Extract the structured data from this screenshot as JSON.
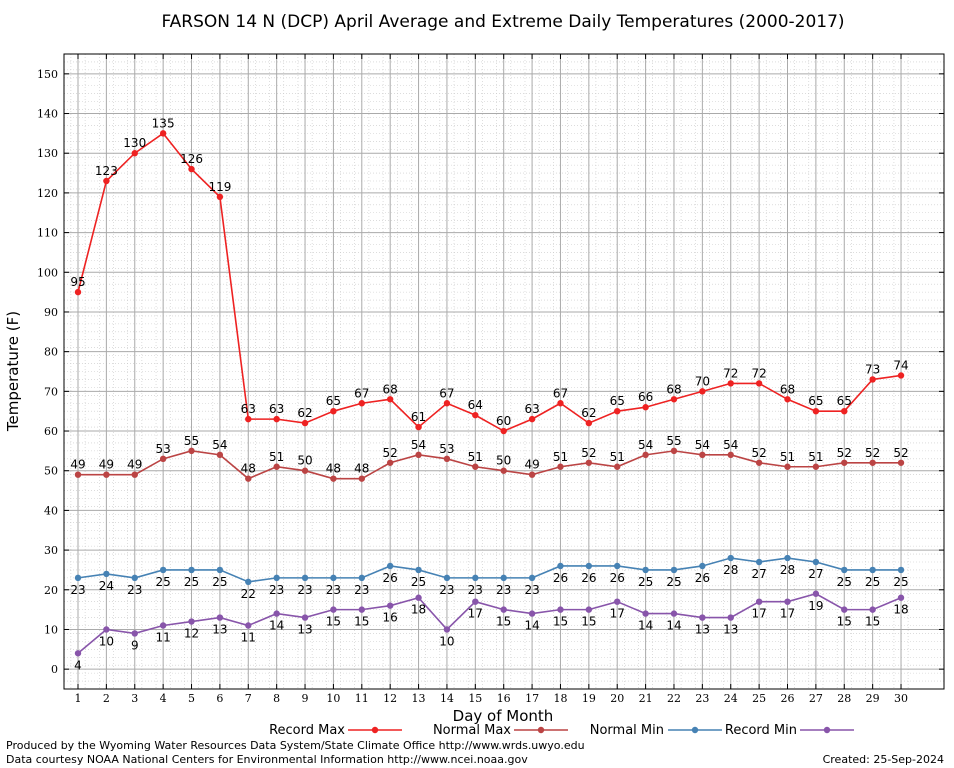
{
  "chart_data": {
    "type": "line",
    "title": "FARSON 14 N (DCP) April Average and Extreme Daily Temperatures (2000-2017)",
    "xlabel": "Day of Month",
    "ylabel": "Temperature (F)",
    "ylim": [
      -5,
      155
    ],
    "yticks": [
      0,
      10,
      20,
      30,
      40,
      50,
      60,
      70,
      80,
      90,
      100,
      110,
      120,
      130,
      140,
      150
    ],
    "x": [
      1,
      2,
      3,
      4,
      5,
      6,
      7,
      8,
      9,
      10,
      11,
      12,
      13,
      14,
      15,
      16,
      17,
      18,
      19,
      20,
      21,
      22,
      23,
      24,
      25,
      26,
      27,
      28,
      29,
      30
    ],
    "grid": true,
    "legend_position": "bottom",
    "series": [
      {
        "name": "Record Max",
        "color": "#ee2222",
        "label_position": "above",
        "values": [
          95,
          123,
          130,
          135,
          126,
          119,
          63,
          63,
          62,
          65,
          67,
          68,
          61,
          67,
          64,
          60,
          63,
          67,
          62,
          65,
          66,
          68,
          70,
          72,
          72,
          68,
          65,
          65,
          73,
          74
        ]
      },
      {
        "name": "Normal Max",
        "color": "#bb4444",
        "label_position": "above",
        "values": [
          49,
          49,
          49,
          53,
          55,
          54,
          48,
          51,
          50,
          48,
          48,
          52,
          54,
          53,
          51,
          50,
          49,
          51,
          52,
          51,
          54,
          55,
          54,
          54,
          52,
          51,
          51,
          52,
          52,
          52
        ]
      },
      {
        "name": "Normal Min",
        "color": "#4682b4",
        "label_position": "below",
        "values": [
          23,
          24,
          23,
          25,
          25,
          25,
          22,
          23,
          23,
          23,
          23,
          26,
          25,
          23,
          23,
          23,
          23,
          26,
          26,
          26,
          25,
          25,
          26,
          28,
          27,
          28,
          27,
          25,
          25,
          25
        ]
      },
      {
        "name": "Record Min",
        "color": "#8855aa",
        "label_position": "below",
        "values": [
          4,
          10,
          9,
          11,
          12,
          13,
          11,
          14,
          13,
          15,
          15,
          16,
          18,
          10,
          17,
          15,
          14,
          15,
          15,
          17,
          14,
          14,
          13,
          13,
          17,
          17,
          19,
          15,
          15,
          18
        ]
      }
    ]
  },
  "footer": {
    "produced_by": "Produced by the Wyoming Water Resources Data System/State Climate Office http://www.wrds.uwyo.edu",
    "data_courtesy": "Data courtesy NOAA National Centers for Environmental Information http://www.ncei.noaa.gov",
    "created": "Created:  25-Sep-2024"
  }
}
